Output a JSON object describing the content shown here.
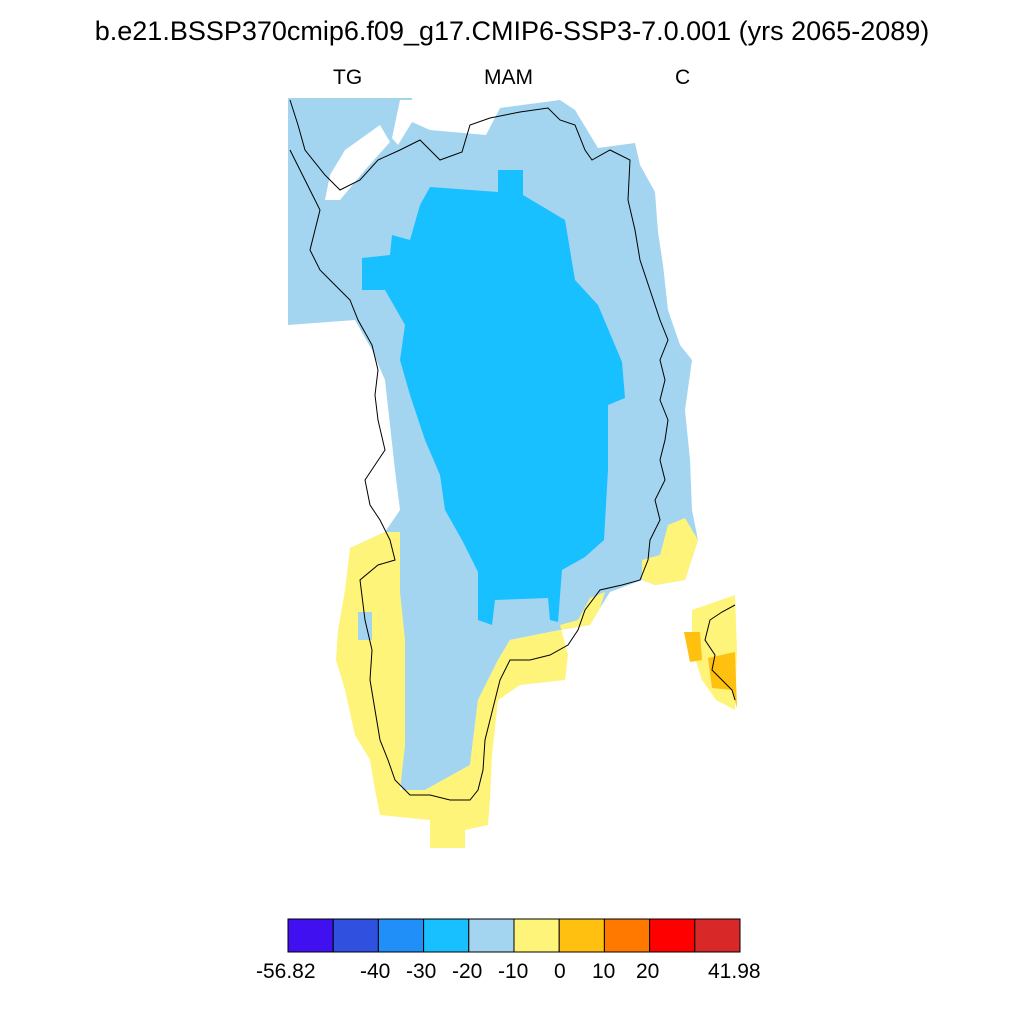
{
  "header": {
    "title": "b.e21.BSSP370cmip6.f09_g17.CMIP6-SSP3-7.0.001 (yrs 2065-2089)",
    "variable": "TG",
    "season": "MAM",
    "units": "C"
  },
  "colors": {
    "background": "#ffffff",
    "coastline": "#000000",
    "palette": [
      "#4010f0",
      "#3050e0",
      "#2090f8",
      "#18c0ff",
      "#a3d5f0",
      "#fff47a",
      "#ffc010",
      "#ff7800",
      "#ff0000",
      "#d82828"
    ]
  },
  "colorbar": {
    "labels": [
      "-56.82",
      "-40",
      "-30",
      "-20",
      "-10",
      "0",
      "10",
      "20",
      "41.98"
    ]
  },
  "map_layers": [
    {
      "name": "-20 to -10 region",
      "color_index": 4
    },
    {
      "name": "-30 to -20 region",
      "color_index": 3
    },
    {
      "name": "-10 to 0 region",
      "color_index": 5
    },
    {
      "name": "0 to 10 region",
      "color_index": 6
    }
  ]
}
